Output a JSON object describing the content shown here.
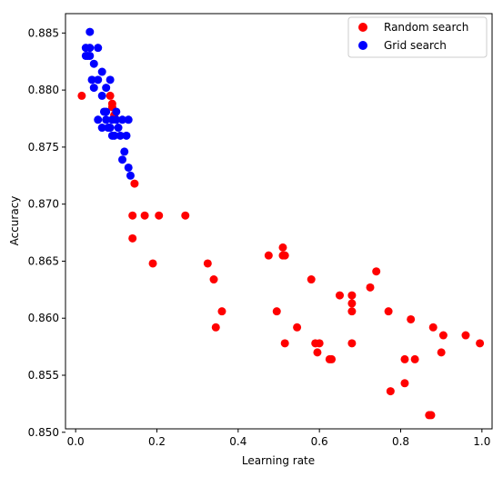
{
  "chart_data": {
    "type": "scatter",
    "title": "",
    "xlabel": "Learning rate",
    "ylabel": "Accuracy",
    "xlim": [
      -0.025,
      1.025
    ],
    "ylim": [
      0.8503,
      0.8867
    ],
    "xticks": [
      0.0,
      0.2,
      0.4,
      0.6,
      0.8,
      1.0
    ],
    "xtick_labels": [
      "0.0",
      "0.2",
      "0.4",
      "0.6",
      "0.8",
      "1.0"
    ],
    "yticks": [
      0.85,
      0.855,
      0.86,
      0.865,
      0.87,
      0.875,
      0.88,
      0.885
    ],
    "ytick_labels": [
      "0.850",
      "0.855",
      "0.860",
      "0.865",
      "0.870",
      "0.875",
      "0.880",
      "0.885"
    ],
    "grid": false,
    "legend_position": "top-right",
    "series": [
      {
        "name": "Random search",
        "color": "#ff0000",
        "points": [
          [
            0.015,
            0.8795
          ],
          [
            0.085,
            0.8795
          ],
          [
            0.09,
            0.8788
          ],
          [
            0.09,
            0.8785
          ],
          [
            0.095,
            0.8778
          ],
          [
            0.145,
            0.8718
          ],
          [
            0.14,
            0.869
          ],
          [
            0.17,
            0.869
          ],
          [
            0.205,
            0.869
          ],
          [
            0.27,
            0.869
          ],
          [
            0.14,
            0.867
          ],
          [
            0.19,
            0.8648
          ],
          [
            0.325,
            0.8648
          ],
          [
            0.34,
            0.8634
          ],
          [
            0.36,
            0.8606
          ],
          [
            0.345,
            0.8592
          ],
          [
            0.475,
            0.8655
          ],
          [
            0.51,
            0.8662
          ],
          [
            0.515,
            0.8655
          ],
          [
            0.51,
            0.8655
          ],
          [
            0.495,
            0.8606
          ],
          [
            0.515,
            0.8578
          ],
          [
            0.545,
            0.8592
          ],
          [
            0.58,
            0.8634
          ],
          [
            0.59,
            0.8578
          ],
          [
            0.6,
            0.8578
          ],
          [
            0.595,
            0.857
          ],
          [
            0.625,
            0.8564
          ],
          [
            0.63,
            0.8564
          ],
          [
            0.65,
            0.862
          ],
          [
            0.68,
            0.862
          ],
          [
            0.68,
            0.8613
          ],
          [
            0.68,
            0.8606
          ],
          [
            0.68,
            0.8578
          ],
          [
            0.725,
            0.8627
          ],
          [
            0.74,
            0.8641
          ],
          [
            0.77,
            0.8606
          ],
          [
            0.775,
            0.8536
          ],
          [
            0.81,
            0.8564
          ],
          [
            0.81,
            0.8543
          ],
          [
            0.825,
            0.8599
          ],
          [
            0.835,
            0.8564
          ],
          [
            0.87,
            0.8515
          ],
          [
            0.875,
            0.8515
          ],
          [
            0.88,
            0.8592
          ],
          [
            0.9,
            0.857
          ],
          [
            0.905,
            0.8585
          ],
          [
            0.96,
            0.8585
          ],
          [
            0.995,
            0.8578
          ]
        ]
      },
      {
        "name": "Grid search",
        "color": "#0000ff",
        "points": [
          [
            0.035,
            0.8851
          ],
          [
            0.025,
            0.8837
          ],
          [
            0.035,
            0.8837
          ],
          [
            0.055,
            0.8837
          ],
          [
            0.03,
            0.883
          ],
          [
            0.025,
            0.883
          ],
          [
            0.035,
            0.883
          ],
          [
            0.045,
            0.8823
          ],
          [
            0.065,
            0.8816
          ],
          [
            0.04,
            0.8809
          ],
          [
            0.055,
            0.8809
          ],
          [
            0.085,
            0.8809
          ],
          [
            0.045,
            0.8802
          ],
          [
            0.075,
            0.8802
          ],
          [
            0.065,
            0.8795
          ],
          [
            0.07,
            0.8781
          ],
          [
            0.075,
            0.8781
          ],
          [
            0.1,
            0.8781
          ],
          [
            0.055,
            0.8774
          ],
          [
            0.075,
            0.8774
          ],
          [
            0.09,
            0.8774
          ],
          [
            0.1,
            0.8774
          ],
          [
            0.115,
            0.8774
          ],
          [
            0.13,
            0.8774
          ],
          [
            0.065,
            0.8767
          ],
          [
            0.08,
            0.8767
          ],
          [
            0.085,
            0.8767
          ],
          [
            0.105,
            0.8767
          ],
          [
            0.09,
            0.876
          ],
          [
            0.095,
            0.876
          ],
          [
            0.11,
            0.876
          ],
          [
            0.125,
            0.876
          ],
          [
            0.12,
            0.8746
          ],
          [
            0.115,
            0.8739
          ],
          [
            0.13,
            0.8732
          ],
          [
            0.135,
            0.8725
          ]
        ]
      }
    ]
  }
}
